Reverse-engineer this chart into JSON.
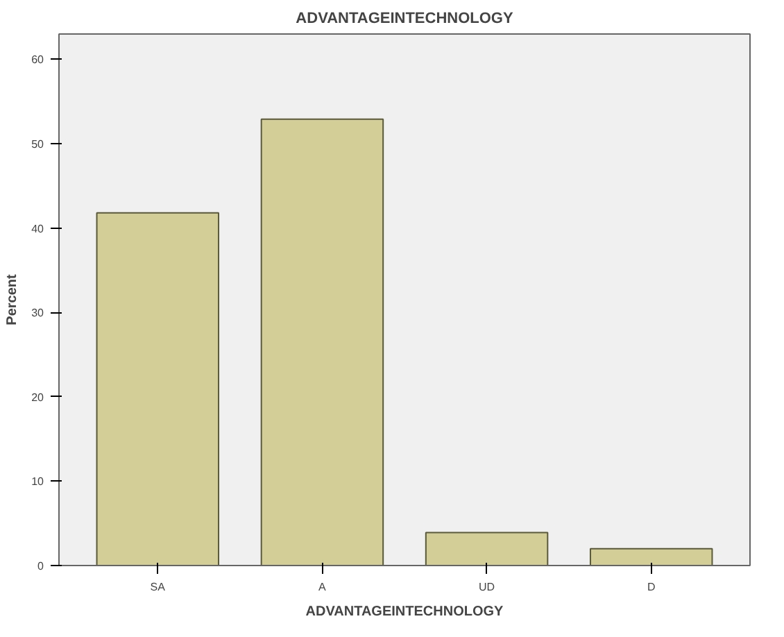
{
  "chart_data": {
    "type": "bar",
    "title": "ADVANTAGEINTECHNOLOGY",
    "xlabel": "ADVANTAGEINTECHNOLOGY",
    "ylabel": "Percent",
    "categories": [
      "SA",
      "A",
      "UD",
      "D"
    ],
    "values": [
      41.8,
      52.9,
      3.9,
      2.0
    ],
    "color": "#d3ce97",
    "ylim": [
      0,
      63
    ],
    "yticks": [
      0,
      10,
      20,
      30,
      40,
      50,
      60
    ],
    "grid": false
  }
}
